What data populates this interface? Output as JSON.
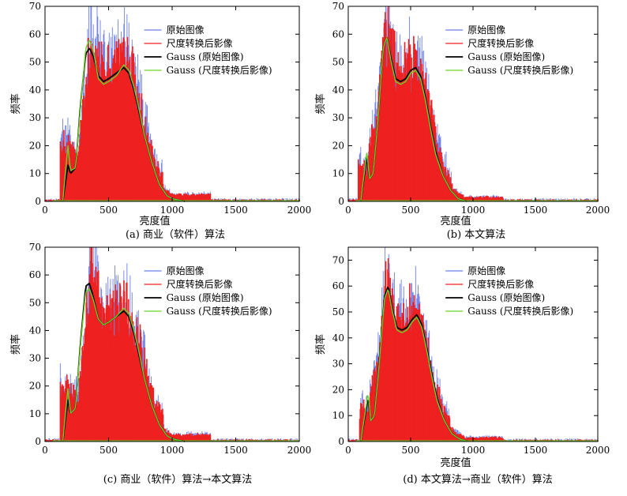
{
  "chart_data": [
    {
      "type": "line",
      "caption": "(a) 商业（软件）算法",
      "xlabel": "亮度值",
      "ylabel": "频率",
      "xlim": [
        0,
        2000
      ],
      "ylim": [
        0,
        70
      ],
      "xticks": [
        0,
        500,
        1000,
        1500,
        2000
      ],
      "yticks": [
        0,
        10,
        20,
        30,
        40,
        50,
        60,
        70
      ],
      "legend_position": "top-right",
      "series": [
        {
          "name": "原始图像",
          "color": "#6e7fe6",
          "kind": "histogram",
          "x": [
            180,
            260,
            320,
            360,
            400,
            460,
            520,
            580,
            640,
            700,
            780,
            860,
            940,
            1000
          ],
          "y": [
            18,
            12,
            40,
            60,
            52,
            46,
            44,
            48,
            50,
            42,
            28,
            12,
            4,
            2
          ]
        },
        {
          "name": "尺度转换后影像",
          "color": "#ee2020",
          "kind": "histogram",
          "x": [
            180,
            260,
            320,
            360,
            400,
            460,
            520,
            580,
            640,
            700,
            780,
            860,
            940,
            1000
          ],
          "y": [
            17,
            11,
            38,
            57,
            50,
            44,
            43,
            47,
            49,
            41,
            27,
            11,
            4,
            2
          ]
        },
        {
          "name": "Gauss (原始图像)",
          "color": "#000000",
          "kind": "curve",
          "x": [
            140,
            180,
            200,
            240,
            280,
            320,
            350,
            380,
            420,
            460,
            500,
            560,
            620,
            660,
            700,
            740,
            780,
            840,
            900,
            960,
            1000,
            1100
          ],
          "y": [
            0,
            13,
            10,
            12,
            35,
            53,
            55,
            52,
            45,
            43,
            44,
            46,
            48,
            46,
            40,
            32,
            24,
            14,
            6,
            2,
            1,
            0
          ]
        },
        {
          "name": "Gauss (尺度转换后影像)",
          "color": "#6ed02a",
          "kind": "curve",
          "x": [
            140,
            180,
            200,
            240,
            280,
            320,
            350,
            380,
            420,
            460,
            500,
            560,
            620,
            660,
            700,
            740,
            780,
            840,
            900,
            960,
            1000,
            1100
          ],
          "y": [
            0,
            20,
            11,
            12,
            34,
            55,
            58,
            54,
            44,
            42,
            43,
            45,
            49,
            47,
            41,
            33,
            24,
            14,
            6,
            2,
            1,
            0
          ]
        }
      ]
    },
    {
      "type": "line",
      "caption": "(b) 本文算法",
      "xlabel": "亮度值",
      "ylabel": "频率",
      "xlim": [
        0,
        2000
      ],
      "ylim": [
        0,
        70
      ],
      "xticks": [
        0,
        500,
        1000,
        1500,
        2000
      ],
      "yticks": [
        0,
        10,
        20,
        30,
        40,
        50,
        60,
        70
      ],
      "legend_position": "top-right",
      "series": [
        {
          "name": "原始图像",
          "color": "#6e7fe6",
          "kind": "histogram",
          "x": [
            140,
            180,
            240,
            300,
            340,
            380,
            440,
            500,
            560,
            620,
            700,
            780,
            860,
            940
          ],
          "y": [
            10,
            18,
            30,
            58,
            55,
            46,
            44,
            48,
            46,
            38,
            20,
            8,
            3,
            1
          ]
        },
        {
          "name": "尺度转换后影像",
          "color": "#ee2020",
          "kind": "histogram",
          "x": [
            140,
            180,
            240,
            300,
            340,
            380,
            440,
            500,
            560,
            620,
            700,
            780,
            860,
            940
          ],
          "y": [
            9,
            17,
            29,
            57,
            54,
            45,
            43,
            47,
            45,
            37,
            19,
            8,
            3,
            1
          ]
        },
        {
          "name": "Gauss (原始图像)",
          "color": "#000000",
          "kind": "curve",
          "x": [
            100,
            150,
            170,
            200,
            240,
            280,
            310,
            340,
            380,
            420,
            460,
            500,
            540,
            580,
            620,
            660,
            700,
            760,
            820,
            880,
            950
          ],
          "y": [
            0,
            16,
            8,
            10,
            30,
            55,
            59,
            52,
            44,
            43,
            44,
            47,
            48,
            45,
            37,
            27,
            18,
            9,
            4,
            1,
            0
          ]
        },
        {
          "name": "Gauss (尺度转换后影像)",
          "color": "#6ed02a",
          "kind": "curve",
          "x": [
            100,
            150,
            170,
            200,
            240,
            280,
            310,
            340,
            380,
            420,
            460,
            500,
            540,
            580,
            620,
            660,
            700,
            760,
            820,
            880,
            950
          ],
          "y": [
            0,
            18,
            8,
            10,
            30,
            55,
            59,
            51,
            43,
            42,
            43,
            46,
            47,
            44,
            36,
            26,
            17,
            9,
            4,
            1,
            0
          ]
        }
      ]
    },
    {
      "type": "line",
      "caption": "(c) 商业（软件）算法→本文算法",
      "xlabel": "",
      "ylabel": "频率",
      "xlim": [
        0,
        2000
      ],
      "ylim": [
        0,
        70
      ],
      "xticks": [
        0,
        500,
        1000,
        1500,
        2000
      ],
      "yticks": [
        0,
        10,
        20,
        30,
        40,
        50,
        60,
        70
      ],
      "legend_position": "top-right",
      "series": [
        {
          "name": "原始图像",
          "color": "#6e7fe6",
          "kind": "histogram",
          "x": [
            180,
            260,
            320,
            360,
            400,
            460,
            520,
            580,
            640,
            700,
            780,
            860,
            940,
            1000
          ],
          "y": [
            17,
            12,
            40,
            62,
            52,
            45,
            44,
            47,
            48,
            40,
            26,
            11,
            4,
            2
          ]
        },
        {
          "name": "尺度转换后影像",
          "color": "#ee2020",
          "kind": "histogram",
          "x": [
            180,
            260,
            320,
            360,
            400,
            460,
            520,
            580,
            640,
            700,
            780,
            860,
            940,
            1000
          ],
          "y": [
            16,
            11,
            38,
            58,
            50,
            44,
            43,
            46,
            47,
            39,
            25,
            11,
            4,
            2
          ]
        },
        {
          "name": "Gauss (原始图像)",
          "color": "#000000",
          "kind": "curve",
          "x": [
            140,
            180,
            200,
            240,
            280,
            320,
            350,
            380,
            420,
            460,
            500,
            560,
            620,
            660,
            700,
            740,
            780,
            840,
            900,
            960,
            1000,
            1100
          ],
          "y": [
            0,
            15,
            10,
            12,
            36,
            56,
            57,
            52,
            44,
            42,
            43,
            45,
            47,
            45,
            39,
            31,
            23,
            13,
            6,
            2,
            1,
            0
          ]
        },
        {
          "name": "Gauss (尺度转换后影像)",
          "color": "#6ed02a",
          "kind": "curve",
          "x": [
            140,
            180,
            200,
            240,
            280,
            320,
            350,
            380,
            420,
            460,
            500,
            560,
            620,
            660,
            700,
            740,
            780,
            840,
            900,
            960,
            1000,
            1100
          ],
          "y": [
            0,
            19,
            10,
            12,
            35,
            54,
            55,
            51,
            44,
            42,
            43,
            45,
            48,
            46,
            40,
            32,
            23,
            13,
            6,
            2,
            1,
            0
          ]
        }
      ]
    },
    {
      "type": "line",
      "caption": "(d) 本文算法→商业（软件）算法",
      "xlabel": "亮度值",
      "ylabel": "频率",
      "xlim": [
        0,
        2000
      ],
      "ylim": [
        0,
        75
      ],
      "xticks": [
        0,
        500,
        1000,
        1500,
        2000
      ],
      "yticks": [
        0,
        10,
        20,
        30,
        40,
        50,
        60,
        70
      ],
      "legend_position": "top-right",
      "series": [
        {
          "name": "原始图像",
          "color": "#6e7fe6",
          "kind": "histogram",
          "x": [
            150,
            190,
            250,
            300,
            340,
            380,
            440,
            500,
            560,
            620,
            700,
            780,
            860,
            940
          ],
          "y": [
            10,
            20,
            32,
            60,
            56,
            46,
            44,
            48,
            46,
            36,
            18,
            7,
            3,
            1
          ]
        },
        {
          "name": "尺度转换后影像",
          "color": "#ee2020",
          "kind": "histogram",
          "x": [
            150,
            190,
            250,
            300,
            340,
            380,
            440,
            500,
            560,
            620,
            700,
            780,
            860,
            940
          ],
          "y": [
            9,
            19,
            31,
            58,
            55,
            45,
            43,
            47,
            45,
            35,
            17,
            7,
            3,
            1
          ]
        },
        {
          "name": "Gauss (原始图像)",
          "color": "#000000",
          "kind": "curve",
          "x": [
            100,
            160,
            180,
            210,
            250,
            290,
            320,
            350,
            390,
            430,
            470,
            510,
            550,
            590,
            630,
            670,
            710,
            770,
            830,
            890,
            960
          ],
          "y": [
            0,
            17,
            8,
            10,
            32,
            56,
            60,
            52,
            44,
            43,
            44,
            47,
            49,
            45,
            36,
            26,
            17,
            8,
            3,
            1,
            0
          ]
        },
        {
          "name": "Gauss (尺度转换后影像)",
          "color": "#6ed02a",
          "kind": "curve",
          "x": [
            100,
            160,
            180,
            210,
            250,
            290,
            320,
            350,
            390,
            430,
            470,
            510,
            550,
            590,
            630,
            670,
            710,
            770,
            830,
            890,
            960
          ],
          "y": [
            0,
            19,
            8,
            10,
            31,
            55,
            59,
            51,
            43,
            42,
            43,
            46,
            48,
            44,
            35,
            25,
            16,
            8,
            3,
            1,
            0
          ]
        }
      ]
    }
  ]
}
